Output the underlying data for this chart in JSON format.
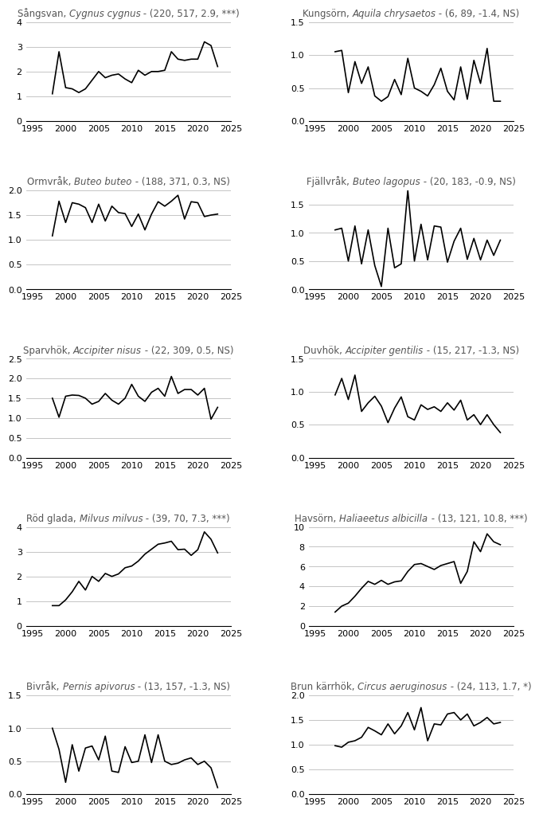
{
  "plots": [
    {
      "title_plain": "Sångsvan, ",
      "title_italic": "Cygnus cygnus",
      "title_suffix": " - (220, 517, 2.9, ***)",
      "years": [
        1998,
        1999,
        2000,
        2001,
        2002,
        2003,
        2004,
        2005,
        2006,
        2007,
        2008,
        2009,
        2010,
        2011,
        2012,
        2013,
        2014,
        2015,
        2016,
        2017,
        2018,
        2019,
        2020,
        2021,
        2022,
        2023
      ],
      "values": [
        1.1,
        2.8,
        1.35,
        1.3,
        1.15,
        1.3,
        1.65,
        2.0,
        1.75,
        1.85,
        1.9,
        1.7,
        1.55,
        2.05,
        1.85,
        2.0,
        2.0,
        2.05,
        2.8,
        2.5,
        2.45,
        2.5,
        2.5,
        3.2,
        3.05,
        2.2
      ],
      "ylim": [
        0,
        4
      ],
      "yticks": [
        0,
        1,
        2,
        3,
        4
      ],
      "row": 0,
      "col": 0
    },
    {
      "title_plain": "Kungsörn, ",
      "title_italic": "Aquila chrysaetos",
      "title_suffix": " - (6, 89, -1.4, NS)",
      "years": [
        1998,
        1999,
        2000,
        2001,
        2002,
        2003,
        2004,
        2005,
        2006,
        2007,
        2008,
        2009,
        2010,
        2011,
        2012,
        2013,
        2014,
        2015,
        2016,
        2017,
        2018,
        2019,
        2020,
        2021,
        2022,
        2023
      ],
      "values": [
        1.05,
        1.07,
        0.43,
        0.9,
        0.57,
        0.82,
        0.38,
        0.3,
        0.37,
        0.63,
        0.4,
        0.95,
        0.5,
        0.45,
        0.38,
        0.55,
        0.8,
        0.45,
        0.32,
        0.82,
        0.33,
        0.92,
        0.57,
        1.1,
        0.3,
        0.3
      ],
      "ylim": [
        0.0,
        1.5
      ],
      "yticks": [
        0.0,
        0.5,
        1.0,
        1.5
      ],
      "row": 0,
      "col": 1
    },
    {
      "title_plain": "Ormvråk, ",
      "title_italic": "Buteo buteo",
      "title_suffix": " - (188, 371, 0.3, NS)",
      "years": [
        1998,
        1999,
        2000,
        2001,
        2002,
        2003,
        2004,
        2005,
        2006,
        2007,
        2008,
        2009,
        2010,
        2011,
        2012,
        2013,
        2014,
        2015,
        2016,
        2017,
        2018,
        2019,
        2020,
        2021,
        2022,
        2023
      ],
      "values": [
        1.08,
        1.78,
        1.35,
        1.75,
        1.72,
        1.65,
        1.35,
        1.72,
        1.38,
        1.68,
        1.55,
        1.53,
        1.27,
        1.52,
        1.2,
        1.52,
        1.77,
        1.68,
        1.78,
        1.9,
        1.42,
        1.77,
        1.75,
        1.47,
        1.5,
        1.52
      ],
      "ylim": [
        0.0,
        2.0
      ],
      "yticks": [
        0.0,
        0.5,
        1.0,
        1.5,
        2.0
      ],
      "row": 1,
      "col": 0
    },
    {
      "title_plain": "Fjällvråk, ",
      "title_italic": "Buteo lagopus",
      "title_suffix": " - (20, 183, -0.9, NS)",
      "years": [
        1998,
        1999,
        2000,
        2001,
        2002,
        2003,
        2004,
        2005,
        2006,
        2007,
        2008,
        2009,
        2010,
        2011,
        2012,
        2013,
        2014,
        2015,
        2016,
        2017,
        2018,
        2019,
        2020,
        2021,
        2022,
        2023
      ],
      "values": [
        1.05,
        1.08,
        0.5,
        1.12,
        0.45,
        1.05,
        0.42,
        0.05,
        1.08,
        0.38,
        0.45,
        1.75,
        0.5,
        1.15,
        0.52,
        1.12,
        1.1,
        0.48,
        0.85,
        1.08,
        0.53,
        0.9,
        0.52,
        0.87,
        0.6,
        0.87
      ],
      "ylim": [
        0.0,
        1.75
      ],
      "yticks": [
        0.0,
        0.5,
        1.0,
        1.5
      ],
      "row": 1,
      "col": 1
    },
    {
      "title_plain": "Sparvhök, ",
      "title_italic": "Accipiter nisus",
      "title_suffix": " - (22, 309, 0.5, NS)",
      "years": [
        1998,
        1999,
        2000,
        2001,
        2002,
        2003,
        2004,
        2005,
        2006,
        2007,
        2008,
        2009,
        2010,
        2011,
        2012,
        2013,
        2014,
        2015,
        2016,
        2017,
        2018,
        2019,
        2020,
        2021,
        2022,
        2023
      ],
      "values": [
        1.5,
        1.02,
        1.55,
        1.58,
        1.57,
        1.5,
        1.35,
        1.42,
        1.62,
        1.45,
        1.35,
        1.5,
        1.85,
        1.55,
        1.42,
        1.65,
        1.75,
        1.55,
        2.05,
        1.62,
        1.72,
        1.72,
        1.58,
        1.75,
        0.97,
        1.27
      ],
      "ylim": [
        0.0,
        2.5
      ],
      "yticks": [
        0.0,
        0.5,
        1.0,
        1.5,
        2.0,
        2.5
      ],
      "row": 2,
      "col": 0
    },
    {
      "title_plain": "Duvhök, ",
      "title_italic": "Accipiter gentilis",
      "title_suffix": " - (15, 217, -1.3, NS)",
      "years": [
        1998,
        1999,
        2000,
        2001,
        2002,
        2003,
        2004,
        2005,
        2006,
        2007,
        2008,
        2009,
        2010,
        2011,
        2012,
        2013,
        2014,
        2015,
        2016,
        2017,
        2018,
        2019,
        2020,
        2021,
        2022,
        2023
      ],
      "values": [
        0.95,
        1.2,
        0.88,
        1.25,
        0.7,
        0.83,
        0.93,
        0.78,
        0.53,
        0.75,
        0.92,
        0.62,
        0.57,
        0.8,
        0.73,
        0.77,
        0.7,
        0.83,
        0.72,
        0.87,
        0.57,
        0.65,
        0.5,
        0.65,
        0.5,
        0.38
      ],
      "ylim": [
        0.0,
        1.5
      ],
      "yticks": [
        0.0,
        0.5,
        1.0,
        1.5
      ],
      "row": 2,
      "col": 1
    },
    {
      "title_plain": "Röd glada, ",
      "title_italic": "Milvus milvus",
      "title_suffix": " - (39, 70, 7.3, ***)",
      "years": [
        1998,
        1999,
        2000,
        2001,
        2002,
        2003,
        2004,
        2005,
        2006,
        2007,
        2008,
        2009,
        2010,
        2011,
        2012,
        2013,
        2014,
        2015,
        2016,
        2017,
        2018,
        2019,
        2020,
        2021,
        2022,
        2023
      ],
      "values": [
        0.82,
        0.82,
        1.05,
        1.38,
        1.8,
        1.45,
        2.0,
        1.8,
        2.12,
        2.0,
        2.1,
        2.35,
        2.42,
        2.62,
        2.9,
        3.1,
        3.3,
        3.35,
        3.42,
        3.08,
        3.1,
        2.85,
        3.08,
        3.8,
        3.5,
        2.95
      ],
      "ylim": [
        0,
        4
      ],
      "yticks": [
        0,
        1,
        2,
        3,
        4
      ],
      "row": 3,
      "col": 0
    },
    {
      "title_plain": "Havsörn, ",
      "title_italic": "Haliaeetus albicilla",
      "title_suffix": " - (13, 121, 10.8, ***)",
      "years": [
        1998,
        1999,
        2000,
        2001,
        2002,
        2003,
        2004,
        2005,
        2006,
        2007,
        2008,
        2009,
        2010,
        2011,
        2012,
        2013,
        2014,
        2015,
        2016,
        2017,
        2018,
        2019,
        2020,
        2021,
        2022,
        2023
      ],
      "values": [
        1.4,
        2.0,
        2.3,
        3.0,
        3.8,
        4.5,
        4.2,
        4.6,
        4.2,
        4.45,
        4.55,
        5.5,
        6.2,
        6.3,
        6.0,
        5.7,
        6.1,
        6.3,
        6.5,
        4.3,
        5.5,
        8.5,
        7.5,
        9.3,
        8.5,
        8.2
      ],
      "ylim": [
        0,
        10
      ],
      "yticks": [
        0,
        2,
        4,
        6,
        8,
        10
      ],
      "row": 3,
      "col": 1
    },
    {
      "title_plain": "Bivråk, ",
      "title_italic": "Pernis apivorus",
      "title_suffix": " - (13, 157, -1.3, NS)",
      "years": [
        1998,
        1999,
        2000,
        2001,
        2002,
        2003,
        2004,
        2005,
        2006,
        2007,
        2008,
        2009,
        2010,
        2011,
        2012,
        2013,
        2014,
        2015,
        2016,
        2017,
        2018,
        2019,
        2020,
        2021,
        2022,
        2023
      ],
      "values": [
        1.0,
        0.68,
        0.18,
        0.75,
        0.35,
        0.7,
        0.73,
        0.52,
        0.88,
        0.35,
        0.33,
        0.72,
        0.48,
        0.5,
        0.9,
        0.48,
        0.9,
        0.5,
        0.45,
        0.47,
        0.52,
        0.55,
        0.45,
        0.5,
        0.4,
        0.1
      ],
      "ylim": [
        0.0,
        1.5
      ],
      "yticks": [
        0.0,
        0.5,
        1.0,
        1.5
      ],
      "row": 4,
      "col": 0
    },
    {
      "title_plain": "Brun kärrhök, ",
      "title_italic": "Circus aeruginosus",
      "title_suffix": " - (24, 113, 1.7, *)",
      "years": [
        1998,
        1999,
        2000,
        2001,
        2002,
        2003,
        2004,
        2005,
        2006,
        2007,
        2008,
        2009,
        2010,
        2011,
        2012,
        2013,
        2014,
        2015,
        2016,
        2017,
        2018,
        2019,
        2020,
        2021,
        2022,
        2023
      ],
      "values": [
        0.98,
        0.95,
        1.05,
        1.08,
        1.15,
        1.35,
        1.28,
        1.2,
        1.42,
        1.22,
        1.38,
        1.65,
        1.3,
        1.75,
        1.08,
        1.42,
        1.4,
        1.62,
        1.65,
        1.5,
        1.62,
        1.38,
        1.45,
        1.55,
        1.42,
        1.45
      ],
      "ylim": [
        0.0,
        2.0
      ],
      "yticks": [
        0.0,
        0.5,
        1.0,
        1.5,
        2.0
      ],
      "row": 4,
      "col": 1
    }
  ],
  "xlim": [
    1994,
    2025
  ],
  "xticks": [
    1995,
    2000,
    2005,
    2010,
    2015,
    2020,
    2025
  ],
  "line_color": "#000000",
  "line_width": 1.2,
  "title_fontsize": 8.5,
  "tick_fontsize": 8.0,
  "grid_color": "#bbbbbb",
  "grid_linewidth": 0.6,
  "title_color": "#555555",
  "background_color": "#ffffff",
  "fig_width": 6.92,
  "fig_height": 10.38
}
